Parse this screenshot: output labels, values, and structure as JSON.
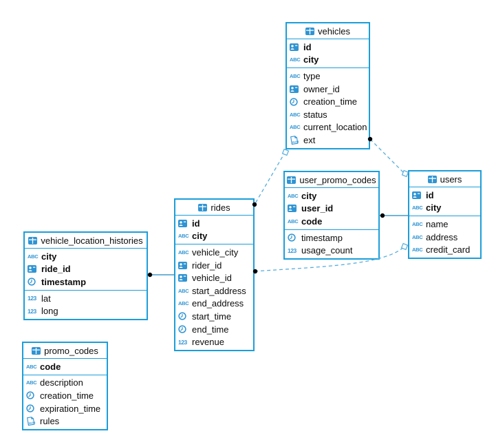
{
  "diagram": {
    "tables": [
      {
        "name": "vehicles",
        "primary_columns": [
          {
            "name": "id",
            "type_icon": "id-card"
          },
          {
            "name": "city",
            "type_icon": "abc"
          }
        ],
        "columns": [
          {
            "name": "type",
            "type_icon": "abc"
          },
          {
            "name": "owner_id",
            "type_icon": "id-card"
          },
          {
            "name": "creation_time",
            "type_icon": "clock"
          },
          {
            "name": "status",
            "type_icon": "abc"
          },
          {
            "name": "current_location",
            "type_icon": "abc"
          },
          {
            "name": "ext",
            "type_icon": "json"
          }
        ]
      },
      {
        "name": "user_promo_codes",
        "primary_columns": [
          {
            "name": "city",
            "type_icon": "abc"
          },
          {
            "name": "user_id",
            "type_icon": "id-card"
          },
          {
            "name": "code",
            "type_icon": "abc"
          }
        ],
        "columns": [
          {
            "name": "timestamp",
            "type_icon": "clock"
          },
          {
            "name": "usage_count",
            "type_icon": "number"
          }
        ]
      },
      {
        "name": "users",
        "primary_columns": [
          {
            "name": "id",
            "type_icon": "id-card"
          },
          {
            "name": "city",
            "type_icon": "abc"
          }
        ],
        "columns": [
          {
            "name": "name",
            "type_icon": "abc"
          },
          {
            "name": "address",
            "type_icon": "abc"
          },
          {
            "name": "credit_card",
            "type_icon": "abc"
          }
        ]
      },
      {
        "name": "rides",
        "primary_columns": [
          {
            "name": "id",
            "type_icon": "id-card"
          },
          {
            "name": "city",
            "type_icon": "abc"
          }
        ],
        "columns": [
          {
            "name": "vehicle_city",
            "type_icon": "abc"
          },
          {
            "name": "rider_id",
            "type_icon": "id-card"
          },
          {
            "name": "vehicle_id",
            "type_icon": "id-card"
          },
          {
            "name": "start_address",
            "type_icon": "abc"
          },
          {
            "name": "end_address",
            "type_icon": "abc"
          },
          {
            "name": "start_time",
            "type_icon": "clock"
          },
          {
            "name": "end_time",
            "type_icon": "clock"
          },
          {
            "name": "revenue",
            "type_icon": "number"
          }
        ]
      },
      {
        "name": "vehicle_location_histories",
        "primary_columns": [
          {
            "name": "city",
            "type_icon": "abc"
          },
          {
            "name": "ride_id",
            "type_icon": "id-card"
          },
          {
            "name": "timestamp",
            "type_icon": "clock"
          }
        ],
        "columns": [
          {
            "name": "lat",
            "type_icon": "number"
          },
          {
            "name": "long",
            "type_icon": "number"
          }
        ]
      },
      {
        "name": "promo_codes",
        "primary_columns": [
          {
            "name": "code",
            "type_icon": "abc"
          }
        ],
        "columns": [
          {
            "name": "description",
            "type_icon": "abc"
          },
          {
            "name": "creation_time",
            "type_icon": "clock"
          },
          {
            "name": "expiration_time",
            "type_icon": "clock"
          },
          {
            "name": "rules",
            "type_icon": "json"
          }
        ]
      }
    ],
    "relationships": [
      {
        "id": "vehicles-rides",
        "from": "rides",
        "to": "vehicles",
        "style": "dashed"
      },
      {
        "id": "vehicles-users",
        "from": "vehicles",
        "to": "users",
        "style": "dashed"
      },
      {
        "id": "rides-users",
        "from": "rides",
        "to": "users",
        "style": "dashed"
      },
      {
        "id": "user_promo_codes-users",
        "from": "user_promo_codes",
        "to": "users",
        "style": "solid"
      },
      {
        "id": "vehicle_location_histories-rides",
        "from": "vehicle_location_histories",
        "to": "rides",
        "style": "solid"
      }
    ]
  },
  "colors": {
    "table_border": "#1b9ed9",
    "icon_blue": "#2f94d3",
    "dashed_line": "#55aede",
    "solid_line": "#1b86c0",
    "connector_dot": "#000000",
    "text": "#0b0b0b",
    "background": "#ffffff"
  }
}
